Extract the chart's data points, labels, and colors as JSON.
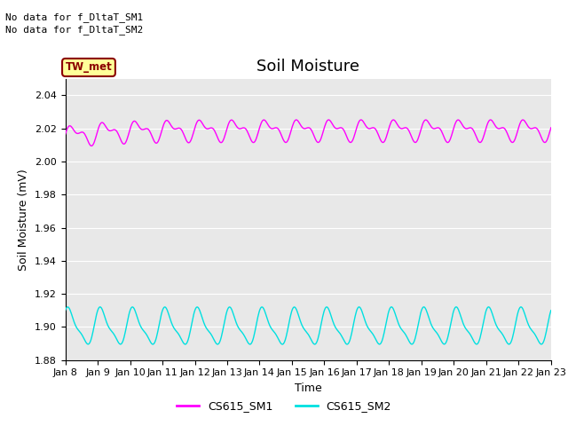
{
  "title": "Soil Moisture",
  "xlabel": "Time",
  "ylabel": "Soil Moisture (mV)",
  "ylim": [
    1.88,
    2.05
  ],
  "yticks": [
    1.88,
    1.9,
    1.92,
    1.94,
    1.96,
    1.98,
    2.0,
    2.02,
    2.04
  ],
  "xtick_labels": [
    "Jan 8",
    "Jan 9",
    "Jan 10",
    "Jan 11",
    "Jan 12",
    "Jan 13",
    "Jan 14",
    "Jan 15",
    "Jan 16",
    "Jan 17",
    "Jan 18",
    "Jan 19",
    "Jan 20",
    "Jan 21",
    "Jan 22",
    "Jan 23"
  ],
  "color_sm1": "#ff00ff",
  "color_sm2": "#00e0e0",
  "legend_entries": [
    "CS615_SM1",
    "CS615_SM2"
  ],
  "no_data_text1": "No data for f_DltaT_SM1",
  "no_data_text2": "No data for f_DltaT_SM2",
  "tw_met_label": "TW_met",
  "tw_met_bg": "#ffff99",
  "tw_met_border": "#8B0000",
  "background_color": "#e8e8e8",
  "title_fontsize": 13,
  "axis_fontsize": 9,
  "tick_fontsize": 8,
  "legend_fontsize": 9
}
